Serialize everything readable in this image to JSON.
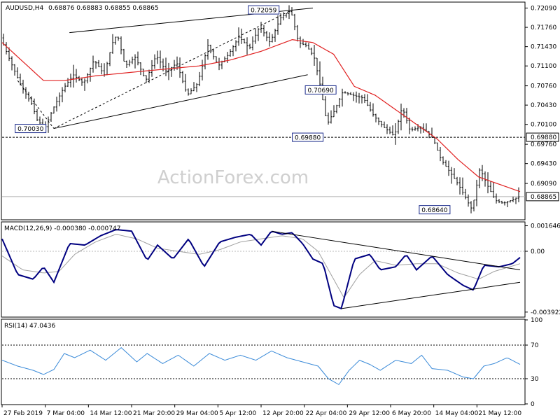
{
  "chart_data": [
    {
      "type": "candlestick",
      "title": "AUDUSD,H4",
      "ohlc_header": "0.68876 0.68883 0.68855 0.68865",
      "watermark": "ActionForex.com",
      "ylim": [
        0.6848,
        0.7218
      ],
      "yticks": [
        "0.72090",
        "0.71760",
        "0.71430",
        "0.71100",
        "0.70760",
        "0.70430",
        "0.70100",
        "0.69760",
        "0.69430",
        "0.69090"
      ],
      "last_price": "0.68865",
      "support_level": "0.69880",
      "annotations": [
        {
          "text": "0.72059",
          "x": 0.505,
          "value": 0.72059
        },
        {
          "text": "0.70030",
          "x": 0.055,
          "value": 0.7003
        },
        {
          "text": "0.70690",
          "x": 0.615,
          "value": 0.7069
        },
        {
          "text": "0.69880",
          "x": 0.59,
          "value": 0.6988
        },
        {
          "text": "0.68640",
          "x": 0.835,
          "value": 0.6864
        }
      ],
      "price_key": [
        [
          0.0,
          0.7158
        ],
        [
          0.02,
          0.7115
        ],
        [
          0.04,
          0.7075
        ],
        [
          0.06,
          0.7045
        ],
        [
          0.07,
          0.7018
        ],
        [
          0.085,
          0.7003
        ],
        [
          0.1,
          0.7035
        ],
        [
          0.12,
          0.707
        ],
        [
          0.14,
          0.7095
        ],
        [
          0.16,
          0.708
        ],
        [
          0.18,
          0.712
        ],
        [
          0.2,
          0.7095
        ],
        [
          0.215,
          0.7148
        ],
        [
          0.225,
          0.7165
        ],
        [
          0.24,
          0.711
        ],
        [
          0.26,
          0.7125
        ],
        [
          0.28,
          0.7085
        ],
        [
          0.3,
          0.7128
        ],
        [
          0.32,
          0.71
        ],
        [
          0.34,
          0.7115
        ],
        [
          0.36,
          0.706
        ],
        [
          0.38,
          0.708
        ],
        [
          0.4,
          0.7145
        ],
        [
          0.42,
          0.711
        ],
        [
          0.44,
          0.713
        ],
        [
          0.46,
          0.716
        ],
        [
          0.48,
          0.714
        ],
        [
          0.5,
          0.7178
        ],
        [
          0.52,
          0.715
        ],
        [
          0.54,
          0.7192
        ],
        [
          0.56,
          0.7205
        ],
        [
          0.575,
          0.715
        ],
        [
          0.59,
          0.7145
        ],
        [
          0.605,
          0.7125
        ],
        [
          0.615,
          0.7085
        ],
        [
          0.63,
          0.701
        ],
        [
          0.645,
          0.7035
        ],
        [
          0.66,
          0.7065
        ],
        [
          0.68,
          0.706
        ],
        [
          0.7,
          0.7055
        ],
        [
          0.72,
          0.7025
        ],
        [
          0.74,
          0.7005
        ],
        [
          0.76,
          0.699
        ],
        [
          0.775,
          0.704
        ],
        [
          0.79,
          0.7
        ],
        [
          0.81,
          0.7005
        ],
        [
          0.82,
          0.7
        ],
        [
          0.835,
          0.6985
        ],
        [
          0.85,
          0.695
        ],
        [
          0.87,
          0.6925
        ],
        [
          0.885,
          0.6905
        ],
        [
          0.9,
          0.688
        ],
        [
          0.91,
          0.6864
        ],
        [
          0.925,
          0.6935
        ],
        [
          0.94,
          0.6905
        ],
        [
          0.955,
          0.688
        ],
        [
          0.97,
          0.6875
        ],
        [
          0.985,
          0.688
        ],
        [
          1.0,
          0.6886
        ]
      ],
      "ma_key": [
        [
          0.0,
          0.715
        ],
        [
          0.08,
          0.7085
        ],
        [
          0.12,
          0.7085
        ],
        [
          0.18,
          0.7093
        ],
        [
          0.26,
          0.71
        ],
        [
          0.32,
          0.7105
        ],
        [
          0.38,
          0.711
        ],
        [
          0.44,
          0.712
        ],
        [
          0.5,
          0.7135
        ],
        [
          0.56,
          0.7155
        ],
        [
          0.6,
          0.715
        ],
        [
          0.64,
          0.713
        ],
        [
          0.68,
          0.7075
        ],
        [
          0.72,
          0.706
        ],
        [
          0.76,
          0.7035
        ],
        [
          0.8,
          0.701
        ],
        [
          0.84,
          0.6985
        ],
        [
          0.88,
          0.695
        ],
        [
          0.92,
          0.692
        ],
        [
          1.0,
          0.6895
        ]
      ],
      "trendlines": [
        {
          "from": [
            0.13,
            0.7167
          ],
          "to": [
            0.6,
            0.7209
          ],
          "style": "solid"
        },
        {
          "from": [
            0.1,
            0.7003
          ],
          "to": [
            0.59,
            0.7095
          ],
          "style": "solid"
        },
        {
          "from": [
            0.03,
            0.7085
          ],
          "to": [
            0.1,
            0.7003
          ],
          "style": "dashed"
        },
        {
          "from": [
            0.1,
            0.7003
          ],
          "to": [
            0.56,
            0.7206
          ],
          "style": "dashed"
        }
      ],
      "colors": {
        "ma": "#e02020",
        "candle": "#000000",
        "support": "#000000"
      }
    },
    {
      "type": "line",
      "title": "MACD(12,26,9) -0.000380 -0.000747",
      "ylim": [
        -0.0042,
        0.00185
      ],
      "yticks": [
        "0.001646",
        "0.00",
        "-0.003922"
      ],
      "current_label": "0.00",
      "macd_key": [
        [
          0.0,
          0.0008
        ],
        [
          0.03,
          -0.0015
        ],
        [
          0.06,
          -0.0018
        ],
        [
          0.08,
          -0.001
        ],
        [
          0.1,
          -0.002
        ],
        [
          0.13,
          0.0005
        ],
        [
          0.16,
          0.0004
        ],
        [
          0.19,
          0.001
        ],
        [
          0.22,
          0.0014
        ],
        [
          0.25,
          0.0013
        ],
        [
          0.28,
          -0.0006
        ],
        [
          0.3,
          0.0004
        ],
        [
          0.33,
          -0.0005
        ],
        [
          0.36,
          0.0008
        ],
        [
          0.39,
          -0.001
        ],
        [
          0.42,
          0.0006
        ],
        [
          0.45,
          0.0009
        ],
        [
          0.48,
          0.0011
        ],
        [
          0.5,
          0.0004
        ],
        [
          0.52,
          0.0013
        ],
        [
          0.54,
          0.0011
        ],
        [
          0.56,
          0.0012
        ],
        [
          0.58,
          0.0005
        ],
        [
          0.6,
          -0.0005
        ],
        [
          0.62,
          -0.0008
        ],
        [
          0.64,
          -0.0035
        ],
        [
          0.655,
          -0.0037
        ],
        [
          0.68,
          -0.0005
        ],
        [
          0.71,
          -0.0002
        ],
        [
          0.73,
          -0.0012
        ],
        [
          0.76,
          -0.001
        ],
        [
          0.78,
          -0.0002
        ],
        [
          0.8,
          -0.0012
        ],
        [
          0.83,
          -0.0003
        ],
        [
          0.86,
          -0.0015
        ],
        [
          0.89,
          -0.0022
        ],
        [
          0.91,
          -0.0025
        ],
        [
          0.93,
          -0.0009
        ],
        [
          0.96,
          -0.001
        ],
        [
          0.985,
          -0.0008
        ],
        [
          1.0,
          -0.0004
        ]
      ],
      "signal_key": [
        [
          0.0,
          -0.0003
        ],
        [
          0.04,
          -0.0012
        ],
        [
          0.08,
          -0.0014
        ],
        [
          0.11,
          -0.0013
        ],
        [
          0.14,
          -0.0002
        ],
        [
          0.18,
          0.0006
        ],
        [
          0.22,
          0.0011
        ],
        [
          0.26,
          0.0008
        ],
        [
          0.3,
          0.0002
        ],
        [
          0.34,
          0.0
        ],
        [
          0.38,
          -0.0002
        ],
        [
          0.42,
          0.0001
        ],
        [
          0.46,
          0.0006
        ],
        [
          0.5,
          0.0008
        ],
        [
          0.54,
          0.001
        ],
        [
          0.58,
          0.0008
        ],
        [
          0.61,
          0.0
        ],
        [
          0.64,
          -0.0018
        ],
        [
          0.66,
          -0.003
        ],
        [
          0.69,
          -0.0015
        ],
        [
          0.72,
          -0.0006
        ],
        [
          0.76,
          -0.0009
        ],
        [
          0.8,
          -0.0008
        ],
        [
          0.84,
          -0.0008
        ],
        [
          0.88,
          -0.0014
        ],
        [
          0.92,
          -0.0018
        ],
        [
          0.95,
          -0.0013
        ],
        [
          1.0,
          -0.0008
        ]
      ],
      "trendlines": [
        {
          "from": [
            0.52,
            0.0013
          ],
          "to": [
            1.0,
            -0.0012
          ]
        },
        {
          "from": [
            0.655,
            -0.0037
          ],
          "to": [
            1.0,
            -0.002
          ]
        }
      ],
      "colors": {
        "macd": "#000080",
        "signal": "#a0a0a0",
        "trend": "#000000"
      }
    },
    {
      "type": "line",
      "title": "RSI(14) 47.0436",
      "ylim": [
        0,
        100
      ],
      "yticks": [
        "100",
        "70",
        "30",
        "0"
      ],
      "levels": [
        70,
        30
      ],
      "rsi_key": [
        [
          0.0,
          52
        ],
        [
          0.03,
          45
        ],
        [
          0.06,
          40
        ],
        [
          0.08,
          35
        ],
        [
          0.1,
          41
        ],
        [
          0.12,
          60
        ],
        [
          0.14,
          55
        ],
        [
          0.17,
          64
        ],
        [
          0.2,
          52
        ],
        [
          0.23,
          67
        ],
        [
          0.26,
          50
        ],
        [
          0.28,
          60
        ],
        [
          0.31,
          48
        ],
        [
          0.34,
          58
        ],
        [
          0.37,
          45
        ],
        [
          0.4,
          60
        ],
        [
          0.43,
          52
        ],
        [
          0.46,
          58
        ],
        [
          0.49,
          52
        ],
        [
          0.52,
          63
        ],
        [
          0.55,
          55
        ],
        [
          0.58,
          50
        ],
        [
          0.61,
          45
        ],
        [
          0.63,
          30
        ],
        [
          0.65,
          23
        ],
        [
          0.67,
          40
        ],
        [
          0.69,
          52
        ],
        [
          0.71,
          47
        ],
        [
          0.73,
          40
        ],
        [
          0.76,
          52
        ],
        [
          0.79,
          48
        ],
        [
          0.81,
          58
        ],
        [
          0.83,
          42
        ],
        [
          0.86,
          40
        ],
        [
          0.89,
          32
        ],
        [
          0.91,
          30
        ],
        [
          0.93,
          45
        ],
        [
          0.95,
          48
        ],
        [
          0.975,
          55
        ],
        [
          1.0,
          47
        ]
      ],
      "colors": {
        "rsi": "#3a8ad8",
        "level": "#000000"
      }
    }
  ],
  "x_axis": {
    "labels": [
      "27 Feb 2019",
      "7 Mar 04:00",
      "14 Mar 12:00",
      "21 Mar 20:00",
      "29 Mar 04:00",
      "5 Apr 12:00",
      "12 Apr 20:00",
      "22 Apr 04:00",
      "29 Apr 12:00",
      "6 May 20:00",
      "14 May 04:00",
      "21 May 12:00"
    ]
  }
}
